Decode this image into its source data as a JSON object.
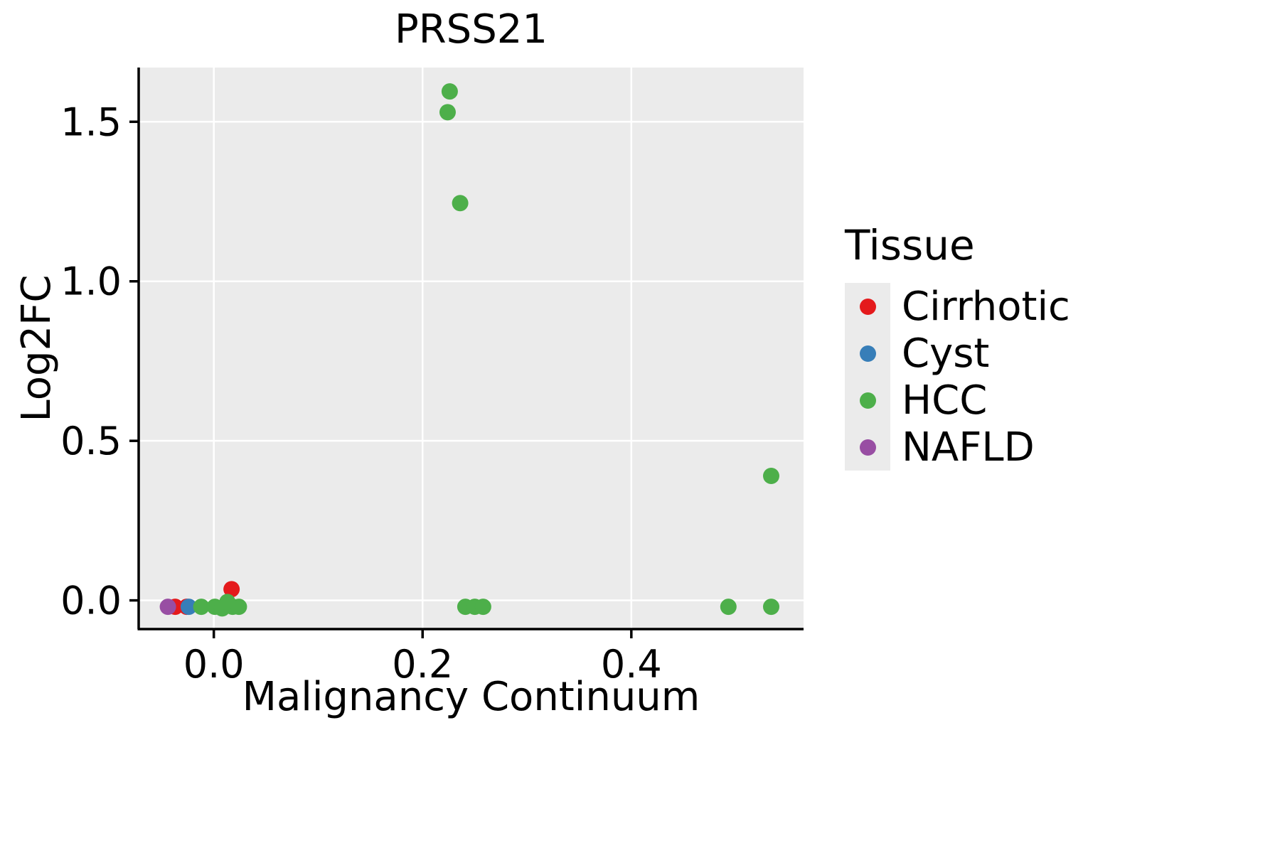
{
  "chart_data": {
    "type": "scatter",
    "title": "PRSS21",
    "xlabel": "Malignancy Continuum",
    "ylabel": "Log2FC",
    "legend_title": "Tissue",
    "xlim": [
      -0.072,
      0.565
    ],
    "ylim": [
      -0.09,
      1.67
    ],
    "xticks": [
      0.0,
      0.2,
      0.4
    ],
    "yticks": [
      0.0,
      0.5,
      1.0,
      1.5
    ],
    "grid": true,
    "panel_background": "#ebebeb",
    "gridline_color": "#ffffff",
    "axis_color": "#000000",
    "legend_position": "right",
    "series": [
      {
        "name": "Cirrhotic",
        "color": "#e41a1c",
        "points": [
          [
            -0.037,
            -0.02
          ],
          [
            -0.026,
            -0.02
          ],
          [
            0.017,
            0.035
          ]
        ]
      },
      {
        "name": "Cyst",
        "color": "#377eb8",
        "points": [
          [
            -0.024,
            -0.02
          ]
        ]
      },
      {
        "name": "HCC",
        "color": "#4daf4a",
        "points": [
          [
            0.226,
            1.595
          ],
          [
            0.224,
            1.53
          ],
          [
            0.236,
            1.245
          ],
          [
            0.534,
            0.39
          ],
          [
            -0.012,
            -0.02
          ],
          [
            0.001,
            -0.02
          ],
          [
            0.008,
            -0.025
          ],
          [
            0.013,
            -0.005
          ],
          [
            0.018,
            -0.02
          ],
          [
            0.024,
            -0.02
          ],
          [
            0.241,
            -0.02
          ],
          [
            0.25,
            -0.02
          ],
          [
            0.258,
            -0.02
          ],
          [
            0.493,
            -0.02
          ],
          [
            0.534,
            -0.02
          ]
        ]
      },
      {
        "name": "NAFLD",
        "color": "#984ea3",
        "points": [
          [
            -0.044,
            -0.02
          ]
        ]
      }
    ]
  }
}
